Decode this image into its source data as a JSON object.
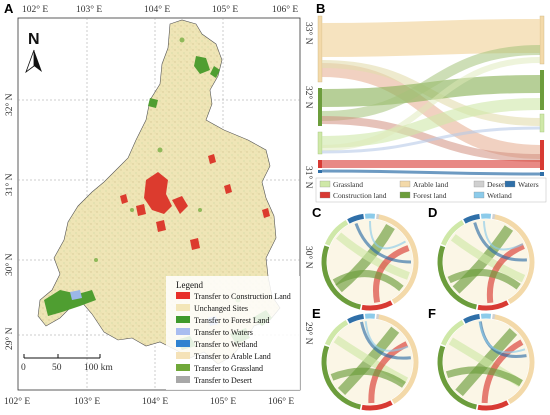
{
  "panels": {
    "a": "A",
    "b": "B",
    "c": "C",
    "d": "D",
    "e": "E",
    "f": "F"
  },
  "map": {
    "top_ticks": [
      "102° E",
      "103° E",
      "104° E",
      "105° E",
      "106° E"
    ],
    "bottom_ticks": [
      "102° E",
      "103° E",
      "104° E",
      "105° E",
      "106° E"
    ],
    "left_ticks": [
      "32° N",
      "31° N",
      "30° N",
      "29° N"
    ],
    "right_ticks": [
      "33° N",
      "32° N",
      "31° N",
      "30° N",
      "29° N"
    ],
    "north_label": "N",
    "scale_labels": [
      "0",
      "50",
      "100 km"
    ],
    "legend": {
      "title": "Legend",
      "items": [
        {
          "label": "Transfer to Construction Land",
          "color": "#e8302a"
        },
        {
          "label": "Unchanged Sites",
          "color": "#f3e6b8"
        },
        {
          "label": "Transfer to Forest Land",
          "color": "#3f9a2c"
        },
        {
          "label": "Transfer to Waters",
          "color": "#a9bdf0"
        },
        {
          "label": "Transfer to Wetland",
          "color": "#2f82d0"
        },
        {
          "label": "Transfer to Arable Land",
          "color": "#f5e2b8"
        },
        {
          "label": "Transfer to Grassland",
          "color": "#70a83a"
        },
        {
          "label": "Transfer to Desert",
          "color": "#a8a8a8"
        }
      ]
    },
    "colors": {
      "base": "#efe5b6",
      "forest": "#4f9e31",
      "grass": "#7fb24a",
      "urban": "#dc3b2e",
      "water": "#9bb7e8"
    }
  },
  "sankey_legend": [
    {
      "label": "Grassland",
      "color": "#cfe8a8"
    },
    {
      "label": "Arable land",
      "color": "#f3d9a9"
    },
    {
      "label": "Desert",
      "color": "#d0d0d0"
    },
    {
      "label": "Waters",
      "color": "#2f6fa8"
    },
    {
      "label": "Construction land",
      "color": "#d83a33"
    },
    {
      "label": "Forest land",
      "color": "#6c9d3c"
    },
    {
      "label": "Wetland",
      "color": "#8ccbea"
    }
  ]
}
